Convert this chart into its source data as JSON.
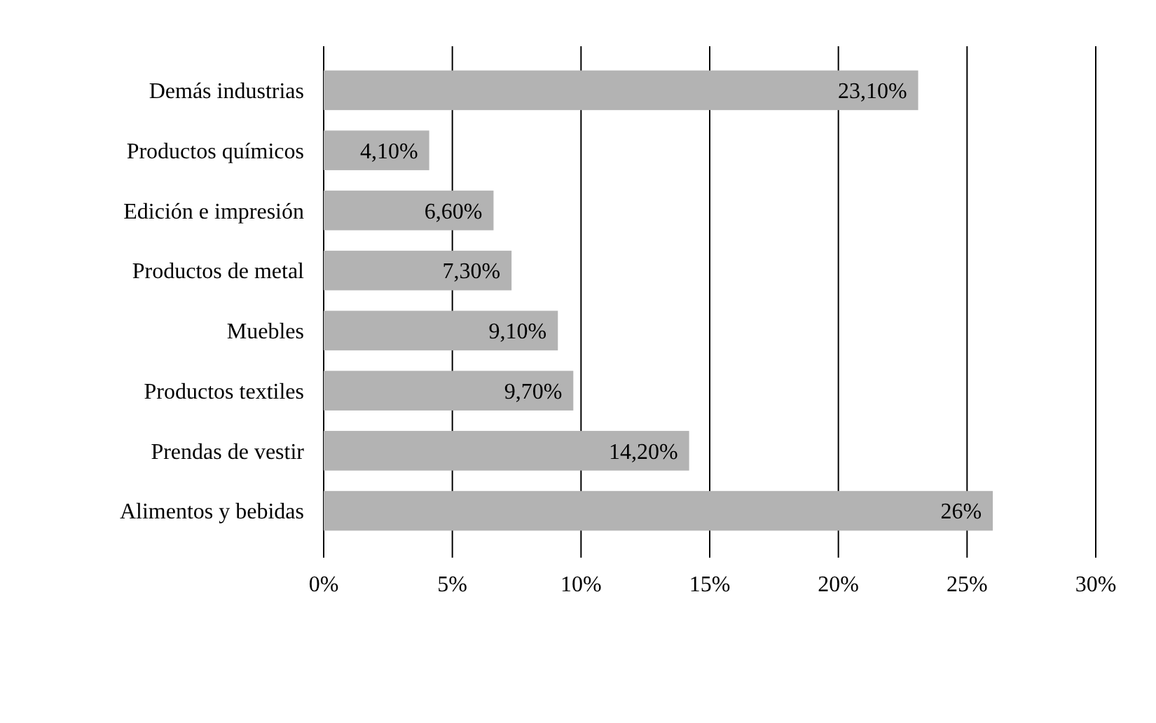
{
  "chart_data": {
    "type": "bar",
    "orientation": "horizontal",
    "categories": [
      "Demás industrias",
      "Productos químicos",
      "Edición e impresión",
      "Productos de metal",
      "Muebles",
      "Productos textiles",
      "Prendas de vestir",
      "Alimentos y bebidas"
    ],
    "values": [
      23.1,
      4.1,
      6.6,
      7.3,
      9.1,
      9.7,
      14.2,
      26
    ],
    "value_labels": [
      "23,10%",
      "4,10%",
      "6,60%",
      "7,30%",
      "9,10%",
      "9,70%",
      "14,20%",
      "26%"
    ],
    "color": "#b3b3b3",
    "xlim": [
      0,
      30
    ],
    "xticks": [
      {
        "value": 0,
        "label": "0%"
      },
      {
        "value": 5,
        "label": "5%"
      },
      {
        "value": 10,
        "label": "10%"
      },
      {
        "value": 15,
        "label": "15%"
      },
      {
        "value": 20,
        "label": "20%"
      },
      {
        "value": 25,
        "label": "25%"
      },
      {
        "value": 30,
        "label": "30%"
      }
    ],
    "grid": "x"
  }
}
